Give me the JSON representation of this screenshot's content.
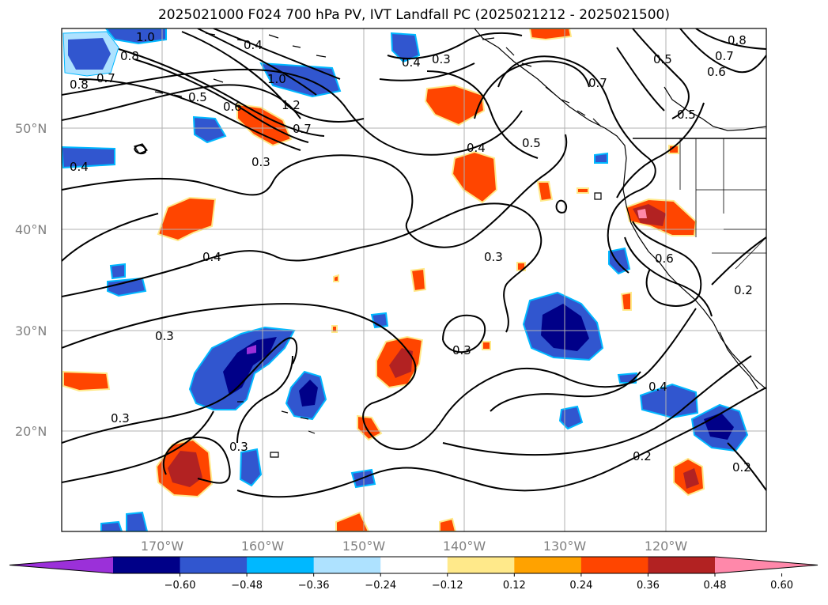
{
  "title": "2025021000 F024 700 hPa PV, IVT Landfall PC (2025021212 - 2025021500)",
  "lat_labels": [
    "50°N",
    "40°N",
    "30°N",
    "20°N"
  ],
  "lon_labels": [
    "170°W",
    "160°W",
    "150°W",
    "140°W",
    "130°W",
    "120°W"
  ],
  "colorbar": {
    "ticks": [
      "−0.60",
      "−0.48",
      "−0.36",
      "−0.24",
      "−0.12",
      "0.12",
      "0.24",
      "0.36",
      "0.48",
      "0.60"
    ],
    "colors": [
      "#9b30d9",
      "#000088",
      "#3156cf",
      "#00b8ff",
      "#aee2ff",
      "#ffffff",
      "#ffe98a",
      "#ffa200",
      "#ff4500",
      "#b22222",
      "#ff88aa"
    ]
  },
  "contour_labels": [
    "1.0",
    "0.8",
    "0.7",
    "0.8",
    "0.4",
    "0.5",
    "0.6",
    "1.0",
    "1.2",
    "0.7",
    "0.3",
    "0.4",
    "0.3",
    "0.4",
    "0.5",
    "0.7",
    "0.8",
    "0.7",
    "0.6",
    "0.5",
    "0.5",
    "0.4",
    "0.3",
    "0.3",
    "0.4",
    "0.6",
    "0.2",
    "0.3",
    "0.3",
    "0.3",
    "0.4",
    "0.2",
    "0.2"
  ],
  "colors": {
    "shading_positive": "#ff4500",
    "shading_negative": "#3156cf",
    "contour": "#000000",
    "grid": "#b0b0b0"
  }
}
